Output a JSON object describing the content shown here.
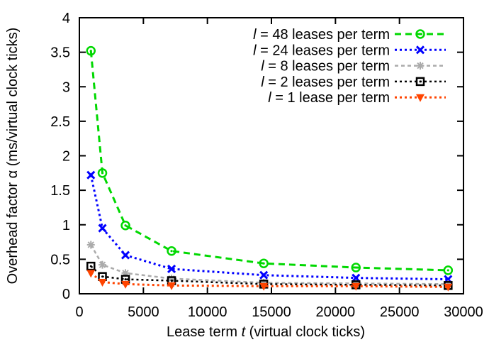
{
  "figure": {
    "background": "#ffffff",
    "frame_color": "#000000"
  },
  "chart_data": {
    "type": "line",
    "title": "",
    "xlabel": {
      "pre": "Lease term ",
      "var": "t",
      "post": " (virtual clock ticks)"
    },
    "ylabel": "Overhead factor α (ms/virtual clock ticks)",
    "xlim": [
      0,
      30000
    ],
    "ylim": [
      0,
      4
    ],
    "x_tick_values": [
      0,
      5000,
      10000,
      15000,
      20000,
      25000,
      30000
    ],
    "x_tick_labels": [
      "0",
      "5000",
      "10000",
      "15000",
      "20000",
      "25000",
      "30000"
    ],
    "y_tick_values": [
      0,
      0.5,
      1,
      1.5,
      2,
      2.5,
      3,
      3.5,
      4
    ],
    "y_tick_labels": [
      "0",
      "0.5",
      "1",
      "1.5",
      "2",
      "2.5",
      "3",
      "3.5",
      "4"
    ],
    "grid": false,
    "legend_position": "top-right-inside",
    "x": [
      900,
      1800,
      3600,
      7200,
      14400,
      21600,
      28800
    ],
    "series": [
      {
        "label": {
          "var": "l",
          "rest": " = 48 leases per term"
        },
        "values": [
          3.52,
          1.75,
          0.99,
          0.62,
          0.44,
          0.38,
          0.34
        ],
        "color": "#00d800",
        "marker": "circle-open",
        "dash": "9,6",
        "width": 3
      },
      {
        "label": {
          "var": "l",
          "rest": " = 24 leases per term"
        },
        "values": [
          1.72,
          0.95,
          0.56,
          0.36,
          0.27,
          0.23,
          0.21
        ],
        "color": "#0000ff",
        "marker": "x-cross",
        "dash": "3,4",
        "width": 3
      },
      {
        "label": {
          "var": "l",
          "rest": " = 8 leases per term"
        },
        "values": [
          0.71,
          0.42,
          0.3,
          0.22,
          0.16,
          0.15,
          0.14
        ],
        "color": "#ababab",
        "marker": "asterisk",
        "dash": "5,4",
        "width": 2.5
      },
      {
        "label": {
          "var": "l",
          "rest": " = 2 leases per term"
        },
        "values": [
          0.4,
          0.25,
          0.21,
          0.19,
          0.14,
          0.13,
          0.12
        ],
        "color": "#000000",
        "marker": "square-open",
        "dash": "3,4",
        "width": 2.5
      },
      {
        "label": {
          "var": "l",
          "rest": " = 1 lease per term"
        },
        "values": [
          0.3,
          0.17,
          0.14,
          0.12,
          0.11,
          0.11,
          0.1
        ],
        "color": "#ff4400",
        "marker": "triangle-down-filled",
        "dash": "3,4",
        "width": 3
      }
    ]
  }
}
